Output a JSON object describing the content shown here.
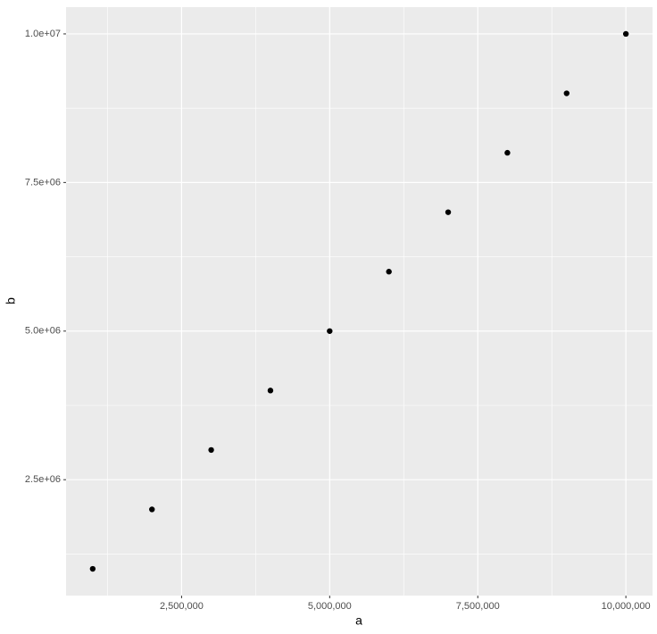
{
  "chart_data": {
    "type": "scatter",
    "x_label": "a",
    "y_label": "b",
    "x": [
      1000000,
      2000000,
      3000000,
      4000000,
      5000000,
      6000000,
      7000000,
      8000000,
      9000000,
      10000000
    ],
    "values": [
      1000000,
      2000000,
      3000000,
      4000000,
      5000000,
      6000000,
      7000000,
      8000000,
      9000000,
      10000000
    ],
    "color": "#000000",
    "xlim": [
      550000,
      10450000
    ],
    "ylim": [
      550000,
      10450000
    ],
    "xticks": [
      {
        "value": 2500000,
        "label": "2,500,000"
      },
      {
        "value": 5000000,
        "label": "5,000,000"
      },
      {
        "value": 7500000,
        "label": "7,500,000"
      },
      {
        "value": 10000000,
        "label": "10,000,000"
      }
    ],
    "yticks": [
      {
        "value": 2500000,
        "label": "2.5e+06"
      },
      {
        "value": 5000000,
        "label": "5.0e+06"
      },
      {
        "value": 7500000,
        "label": "7.5e+06"
      },
      {
        "value": 10000000,
        "label": "1.0e+07"
      }
    ],
    "xminor": [
      1250000,
      3750000,
      6250000,
      8750000
    ],
    "yminor": [
      1250000,
      3750000,
      6250000,
      8750000
    ],
    "grid": true
  }
}
